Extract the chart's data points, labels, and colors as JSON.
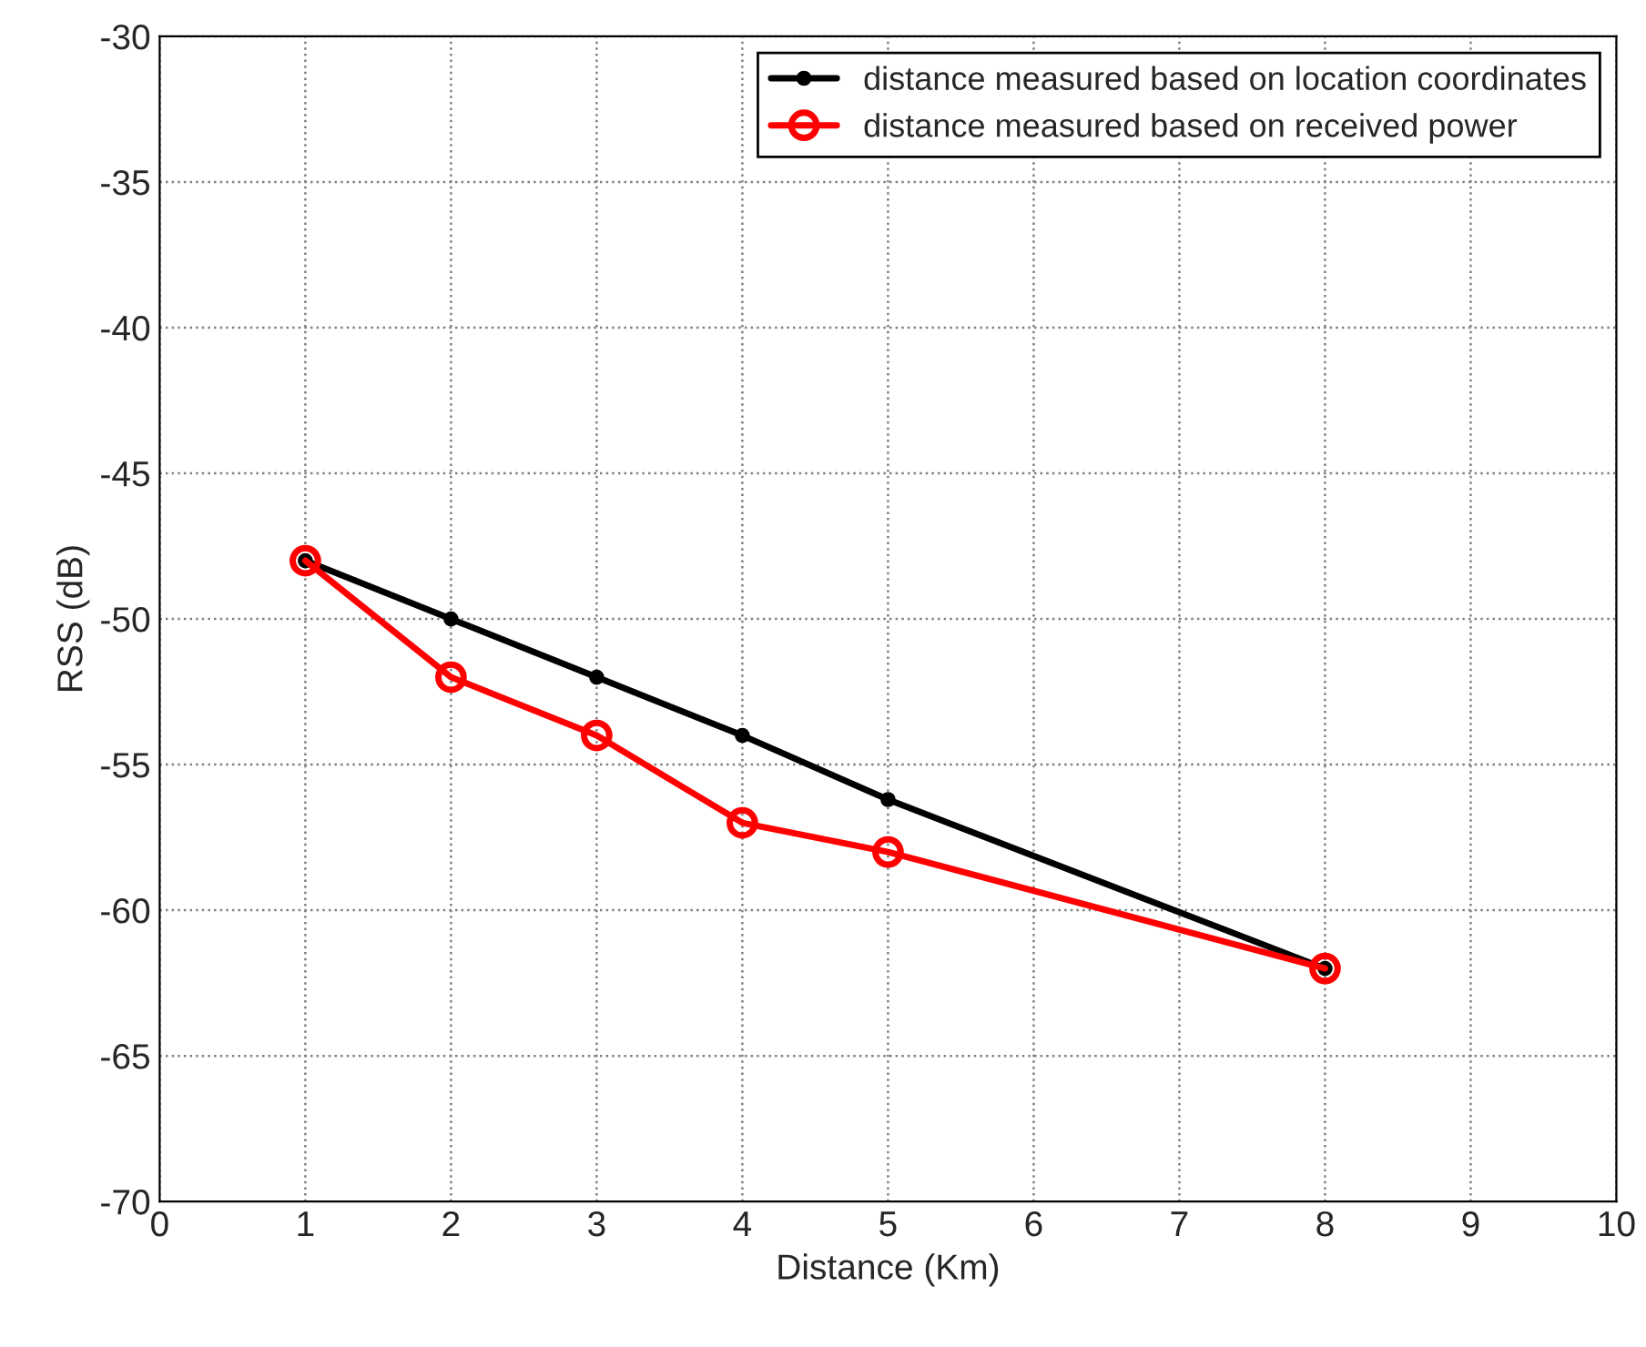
{
  "chart_data": {
    "type": "line",
    "xlabel": "Distance (Km)",
    "ylabel": "RSS (dB)",
    "xlim": [
      0,
      10
    ],
    "xticks": [
      0,
      1,
      2,
      3,
      4,
      5,
      6,
      7,
      8,
      9,
      10
    ],
    "ylim": [
      -70,
      -30
    ],
    "yticks": [
      -70,
      -65,
      -60,
      -55,
      -50,
      -45,
      -40,
      -35,
      -30
    ],
    "grid": true,
    "legend": "top right",
    "line_style": "solid",
    "series": [
      {
        "name": "distance measured based on location coordinates",
        "color": "#000000",
        "marker": "circle",
        "x": [
          1,
          2,
          3,
          4,
          5,
          8
        ],
        "values": [
          -48,
          -50,
          -52,
          -54,
          -56.2,
          -62
        ]
      },
      {
        "name": "distance measured based on received power",
        "color": "#ff0000",
        "marker": "circle",
        "x": [
          1,
          2,
          3,
          4,
          5,
          8
        ],
        "values": [
          -48,
          -52,
          -54,
          -57,
          -58,
          -62
        ]
      }
    ]
  }
}
